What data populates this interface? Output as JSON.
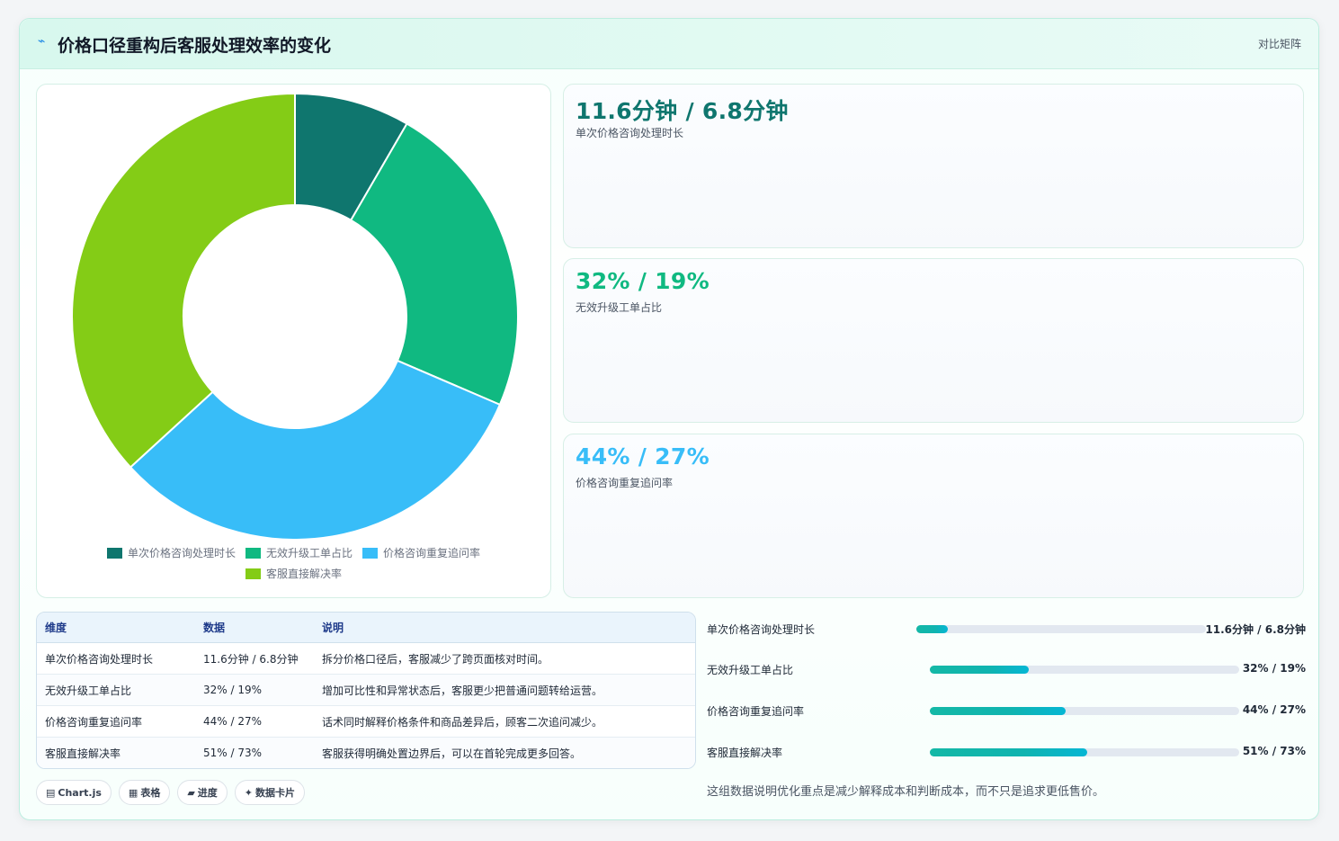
{
  "header": {
    "icon": "trend-icon",
    "title": "价格口径重构后客服处理效率的变化",
    "right_label": "对比矩阵"
  },
  "chart_data": {
    "type": "pie",
    "donut": true,
    "categories": [
      "单次价格咨询处理时长",
      "无效升级工单占比",
      "价格咨询重复追问率",
      "客服直接解决率"
    ],
    "values": [
      11.6,
      32,
      44,
      51
    ],
    "colors": [
      "#0f766e",
      "#10b981",
      "#38bdf8",
      "#84cc16"
    ],
    "legend_position": "bottom"
  },
  "kpis": [
    {
      "value": "11.6分钟 / 6.8分钟",
      "label": "单次价格咨询处理时长",
      "color": "#0f766e"
    },
    {
      "value": "32% / 19%",
      "label": "无效升级工单占比",
      "color": "#10b981"
    },
    {
      "value": "44% / 27%",
      "label": "价格咨询重复追问率",
      "color": "#38bdf8"
    }
  ],
  "table": {
    "headers": [
      "维度",
      "数据",
      "说明"
    ],
    "rows": [
      [
        "单次价格咨询处理时长",
        "11.6分钟 / 6.8分钟",
        "拆分价格口径后，客服减少了跨页面核对时间。"
      ],
      [
        "无效升级工单占比",
        "32% / 19%",
        "增加可比性和异常状态后，客服更少把普通问题转给运营。"
      ],
      [
        "价格咨询重复追问率",
        "44% / 27%",
        "话术同时解释价格条件和商品差异后，顾客二次追问减少。"
      ],
      [
        "客服直接解决率",
        "51% / 73%",
        "客服获得明确处置边界后，可以在首轮完成更多回答。"
      ]
    ]
  },
  "chips": [
    {
      "icon": "chart-icon",
      "glyph": "▤",
      "label": "Chart.js"
    },
    {
      "icon": "table-icon",
      "glyph": "▦",
      "label": "表格"
    },
    {
      "icon": "progress-icon",
      "glyph": "▰",
      "label": "进度"
    },
    {
      "icon": "sparkle-icon",
      "glyph": "✦",
      "label": "数据卡片"
    }
  ],
  "bars": [
    {
      "label": "单次价格咨询处理时长",
      "value": "11.6分钟 / 6.8分钟",
      "fraction": 0.11
    },
    {
      "label": "无效升级工单占比",
      "value": "32% / 19%",
      "fraction": 0.32
    },
    {
      "label": "价格咨询重复追问率",
      "value": "44% / 27%",
      "fraction": 0.44
    },
    {
      "label": "客服直接解决率",
      "value": "51% / 73%",
      "fraction": 0.51
    }
  ],
  "summary": "这组数据说明优化重点是减少解释成本和判断成本，而不只是追求更低售价。"
}
